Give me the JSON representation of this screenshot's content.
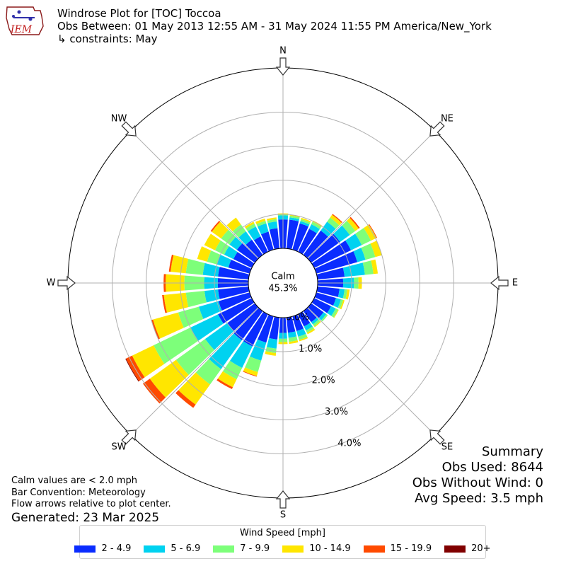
{
  "header": {
    "title": "Windrose Plot for [TOC] Toccoa",
    "subtitle": "Obs Between: 01 May 2013 12:55 AM - 31 May 2024 11:55 PM America/New_York",
    "constraints": "↳ constraints: May",
    "logo_text": "IEM"
  },
  "notes": {
    "line1": "Calm values are < 2.0 mph",
    "line2": "Bar Convention: Meteorology",
    "line3": "Flow arrows relative to plot center.",
    "generated": "Generated: 23 Mar 2025"
  },
  "summary": {
    "title": "Summary",
    "obs_used": "Obs Used: 8644",
    "obs_without_wind": "Obs Without Wind: 0",
    "avg_speed": "Avg Speed: 3.5 mph"
  },
  "legend": {
    "title": "Wind Speed [mph]"
  },
  "chart_data": {
    "type": "windrose",
    "title": "Windrose Plot for [TOC] Toccoa",
    "calm_label": "Calm",
    "calm_value": "45.3%",
    "directions": [
      "N",
      "NE",
      "E",
      "SE",
      "S",
      "SW",
      "W",
      "NW"
    ],
    "radial_ticks": [
      0,
      1,
      2,
      3,
      4
    ],
    "radial_tick_labels": [
      "0.0%",
      "1.0%",
      "2.0%",
      "3.0%",
      "4.0%"
    ],
    "rmax": 5.3,
    "grid": true,
    "legend_position": "bottom",
    "speed_bins": [
      {
        "name": "2 - 4.9",
        "color": "#0a2cff"
      },
      {
        "name": "5 - 6.9",
        "color": "#00d2f0"
      },
      {
        "name": "7 - 9.9",
        "color": "#7dff7a"
      },
      {
        "name": "10 - 14.9",
        "color": "#ffe600"
      },
      {
        "name": "15 - 19.9",
        "color": "#ff4a00"
      },
      {
        "name": "20+",
        "color": "#800000"
      }
    ],
    "sector_angles_deg": [
      0,
      10,
      20,
      30,
      40,
      50,
      60,
      70,
      80,
      90,
      100,
      110,
      120,
      130,
      140,
      150,
      160,
      170,
      180,
      190,
      200,
      210,
      220,
      230,
      240,
      250,
      260,
      270,
      280,
      290,
      300,
      310,
      320,
      330,
      340,
      350
    ],
    "cumulative": [
      [
        0.85,
        0.97,
        1.0,
        1.03,
        1.03,
        1.03
      ],
      [
        0.85,
        0.92,
        0.97,
        1.0,
        1.0,
        1.0
      ],
      [
        0.8,
        0.87,
        0.93,
        0.97,
        0.97,
        0.97
      ],
      [
        0.75,
        0.9,
        0.98,
        1.02,
        1.02,
        1.02
      ],
      [
        0.88,
        1.2,
        1.35,
        1.45,
        1.48,
        1.48
      ],
      [
        1.05,
        1.4,
        1.6,
        1.72,
        1.76,
        1.76
      ],
      [
        1.2,
        1.55,
        1.85,
        2.03,
        2.05,
        2.05
      ],
      [
        1.25,
        1.5,
        1.8,
        2.0,
        2.0,
        2.0
      ],
      [
        0.8,
        1.4,
        1.65,
        1.78,
        1.78,
        1.78
      ],
      [
        0.75,
        1.07,
        1.2,
        1.3,
        1.3,
        1.3
      ],
      [
        0.65,
        0.8,
        0.88,
        0.95,
        0.95,
        0.95
      ],
      [
        0.6,
        0.75,
        0.82,
        0.86,
        0.86,
        0.86
      ],
      [
        0.55,
        0.7,
        0.78,
        0.8,
        0.8,
        0.8
      ],
      [
        0.45,
        0.55,
        0.6,
        0.6,
        0.6,
        0.6
      ],
      [
        0.4,
        0.48,
        0.55,
        0.58,
        0.58,
        0.58
      ],
      [
        0.4,
        0.53,
        0.6,
        0.65,
        0.65,
        0.65
      ],
      [
        0.45,
        0.62,
        0.72,
        0.76,
        0.76,
        0.76
      ],
      [
        0.45,
        0.6,
        0.72,
        0.78,
        0.78,
        0.78
      ],
      [
        0.45,
        0.62,
        0.72,
        0.78,
        0.78,
        0.78
      ],
      [
        0.65,
        0.92,
        1.05,
        1.13,
        1.13,
        1.13
      ],
      [
        0.8,
        1.35,
        1.7,
        1.82,
        1.84,
        1.84
      ],
      [
        1.05,
        1.75,
        2.12,
        2.38,
        2.44,
        2.44
      ],
      [
        1.05,
        2.1,
        2.65,
        3.38,
        3.5,
        3.5
      ],
      [
        1.0,
        1.8,
        2.85,
        3.8,
        4.05,
        4.05
      ],
      [
        1.1,
        2.0,
        3.2,
        3.9,
        4.1,
        4.12
      ],
      [
        0.95,
        1.55,
        2.18,
        2.95,
        3.0,
        3.0
      ],
      [
        0.9,
        1.3,
        1.85,
        2.5,
        2.55,
        2.55
      ],
      [
        0.9,
        1.3,
        1.88,
        2.43,
        2.49,
        2.49
      ],
      [
        0.9,
        1.35,
        1.85,
        2.3,
        2.35,
        2.35
      ],
      [
        0.65,
        1.0,
        1.3,
        1.6,
        1.6,
        1.6
      ],
      [
        0.6,
        0.9,
        1.2,
        1.55,
        1.55,
        1.55
      ],
      [
        0.65,
        0.92,
        1.22,
        1.56,
        1.6,
        1.6
      ],
      [
        0.55,
        0.85,
        1.1,
        1.35,
        1.35,
        1.35
      ],
      [
        0.5,
        0.82,
        0.92,
        0.98,
        0.98,
        0.98
      ],
      [
        0.55,
        0.8,
        0.88,
        0.95,
        0.95,
        0.95
      ],
      [
        0.6,
        0.8,
        0.87,
        0.92,
        0.92,
        0.92
      ]
    ]
  }
}
